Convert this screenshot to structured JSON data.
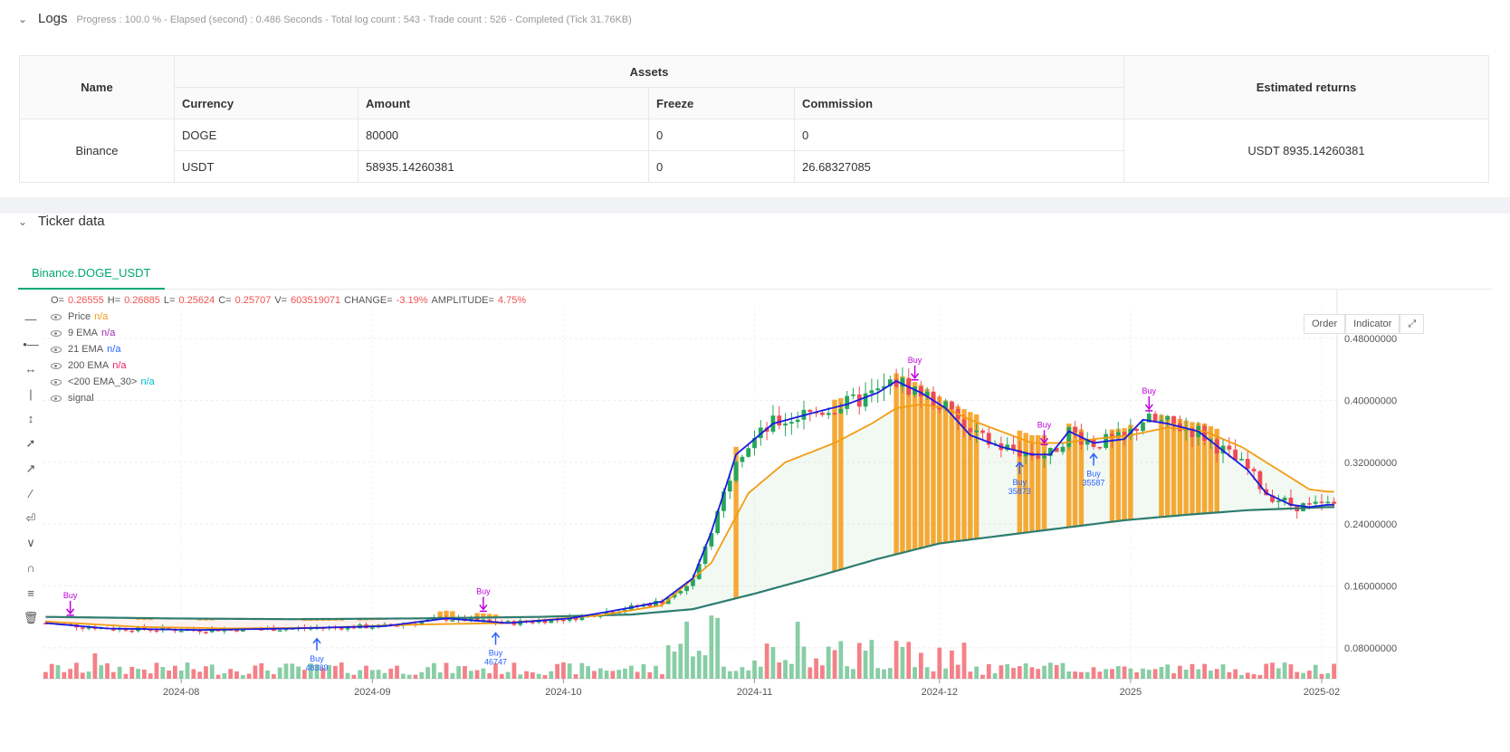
{
  "logs": {
    "title": "Logs",
    "summary": "Progress : 100.0 % - Elapsed (second) : 0.486  Seconds - Total log count : 543 - Trade count : 526 - Completed (Tick 31.76KB)"
  },
  "assets_table": {
    "headers": {
      "name": "Name",
      "assets": "Assets",
      "currency": "Currency",
      "amount": "Amount",
      "freeze": "Freeze",
      "commission": "Commission",
      "returns": "Estimated returns"
    },
    "exchange": "Binance",
    "rows": [
      {
        "currency": "DOGE",
        "amount": "80000",
        "freeze": "0",
        "commission": "0"
      },
      {
        "currency": "USDT",
        "amount": "58935.14260381",
        "freeze": "0",
        "commission": "26.68327085"
      }
    ],
    "estimated_returns": "USDT 8935.14260381"
  },
  "ticker": {
    "title": "Ticker data",
    "tab": "Binance.DOGE_USDT",
    "ohlc": {
      "o_label": "O=",
      "o": "0.26555",
      "h_label": "H=",
      "h": "0.26885",
      "l_label": "L=",
      "l": "0.25624",
      "c_label": "C=",
      "c": "0.25707",
      "v_label": "V=",
      "v": "603519071",
      "change_label": "CHANGE=",
      "change": "-3.19%",
      "amp_label": "AMPLITUDE=",
      "amp": "4.75%"
    },
    "legend": [
      {
        "name": "Price",
        "value": "n/a",
        "color": "#f39c12"
      },
      {
        "name": "9 EMA",
        "value": "n/a",
        "color": "#9c27b0"
      },
      {
        "name": "21 EMA",
        "value": "n/a",
        "color": "#2962ff"
      },
      {
        "name": "200 EMA",
        "value": "n/a",
        "color": "#e91e63"
      },
      {
        "name": "<200 EMA_30>",
        "value": "n/a",
        "color": "#00bcd4"
      },
      {
        "name": "signal",
        "value": "",
        "color": "#555555"
      }
    ],
    "buttons": {
      "order": "Order",
      "indicator": "Indicator"
    }
  },
  "chart_data": {
    "type": "candlestick",
    "y_ticks": [
      "0.48000000",
      "0.40000000",
      "0.32000000",
      "0.24000000",
      "0.16000000",
      "0.08000000"
    ],
    "y_tick_values": [
      0.48,
      0.4,
      0.32,
      0.24,
      0.16,
      0.08
    ],
    "ylim": [
      0.04,
      0.52
    ],
    "x_ticks": [
      "2024-08",
      "2024-09",
      "2024-10",
      "2024-11",
      "2024-12",
      "2025",
      "2025-02"
    ],
    "x_tick_index": [
      22,
      53,
      84,
      115,
      145,
      176,
      207
    ],
    "n_bars": 210,
    "ema_fast_anchors": [
      [
        0,
        0.112
      ],
      [
        10,
        0.105
      ],
      [
        25,
        0.103
      ],
      [
        40,
        0.105
      ],
      [
        55,
        0.108
      ],
      [
        65,
        0.118
      ],
      [
        75,
        0.112
      ],
      [
        85,
        0.118
      ],
      [
        95,
        0.132
      ],
      [
        100,
        0.14
      ],
      [
        105,
        0.17
      ],
      [
        108,
        0.23
      ],
      [
        112,
        0.33
      ],
      [
        118,
        0.37
      ],
      [
        125,
        0.385
      ],
      [
        130,
        0.395
      ],
      [
        135,
        0.41
      ],
      [
        138,
        0.425
      ],
      [
        142,
        0.41
      ],
      [
        146,
        0.39
      ],
      [
        150,
        0.355
      ],
      [
        155,
        0.34
      ],
      [
        160,
        0.33
      ],
      [
        163,
        0.33
      ],
      [
        166,
        0.36
      ],
      [
        170,
        0.345
      ],
      [
        175,
        0.35
      ],
      [
        178,
        0.375
      ],
      [
        182,
        0.37
      ],
      [
        187,
        0.36
      ],
      [
        191,
        0.335
      ],
      [
        195,
        0.31
      ],
      [
        198,
        0.28
      ],
      [
        202,
        0.265
      ],
      [
        205,
        0.262
      ],
      [
        208,
        0.265
      ]
    ],
    "ema_slow_anchors": [
      [
        0,
        0.114
      ],
      [
        15,
        0.107
      ],
      [
        30,
        0.105
      ],
      [
        45,
        0.106
      ],
      [
        60,
        0.11
      ],
      [
        75,
        0.112
      ],
      [
        90,
        0.122
      ],
      [
        100,
        0.135
      ],
      [
        108,
        0.19
      ],
      [
        114,
        0.28
      ],
      [
        120,
        0.32
      ],
      [
        128,
        0.345
      ],
      [
        134,
        0.37
      ],
      [
        138,
        0.39
      ],
      [
        142,
        0.395
      ],
      [
        146,
        0.39
      ],
      [
        150,
        0.375
      ],
      [
        155,
        0.36
      ],
      [
        160,
        0.345
      ],
      [
        165,
        0.345
      ],
      [
        170,
        0.35
      ],
      [
        176,
        0.355
      ],
      [
        182,
        0.365
      ],
      [
        188,
        0.36
      ],
      [
        194,
        0.34
      ],
      [
        200,
        0.31
      ],
      [
        205,
        0.285
      ],
      [
        208,
        0.282
      ]
    ],
    "ema200_anchors": [
      [
        0,
        0.12
      ],
      [
        20,
        0.118
      ],
      [
        40,
        0.117
      ],
      [
        60,
        0.118
      ],
      [
        80,
        0.12
      ],
      [
        95,
        0.123
      ],
      [
        105,
        0.13
      ],
      [
        115,
        0.15
      ],
      [
        125,
        0.172
      ],
      [
        135,
        0.195
      ],
      [
        145,
        0.215
      ],
      [
        155,
        0.225
      ],
      [
        165,
        0.235
      ],
      [
        175,
        0.245
      ],
      [
        185,
        0.252
      ],
      [
        195,
        0.258
      ],
      [
        208,
        0.262
      ]
    ],
    "buy_labels": [
      {
        "i": 4,
        "text": "Buy",
        "count": ""
      },
      {
        "i": 44,
        "text": "Buy",
        "count": "48389"
      },
      {
        "i": 71,
        "text": "Buy",
        "count": ""
      },
      {
        "i": 73,
        "text": "Buy",
        "count": "46747"
      },
      {
        "i": 141,
        "text": "Buy",
        "count": ""
      },
      {
        "i": 158,
        "text": "Buy",
        "count": "35873"
      },
      {
        "i": 162,
        "text": "Buy",
        "count": ""
      },
      {
        "i": 170,
        "text": "Buy",
        "count": "35587"
      },
      {
        "i": 179,
        "text": "Buy",
        "count": ""
      }
    ]
  }
}
